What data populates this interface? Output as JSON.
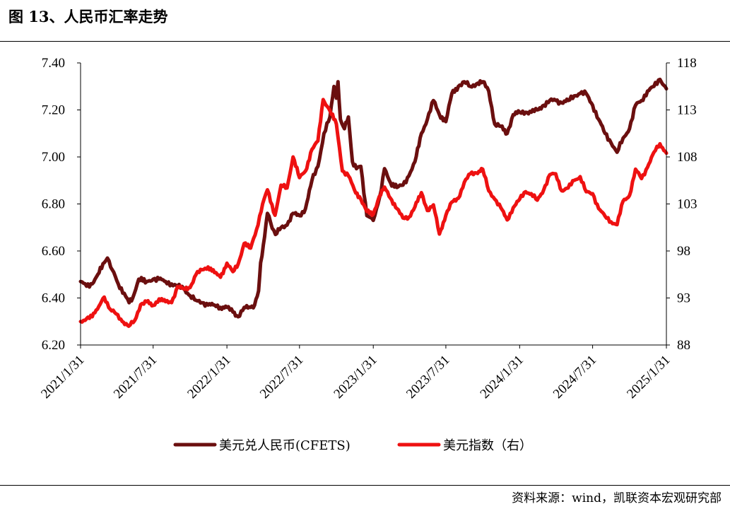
{
  "figure": {
    "title": "图 13、人民币汇率走势",
    "source": "资料来源：wind，凯联资本宏观研究部"
  },
  "chart_data": {
    "type": "line",
    "title": "",
    "x_ticks": [
      "2021/1/31",
      "2021/7/31",
      "2022/1/31",
      "2022/7/31",
      "2023/1/31",
      "2023/7/31",
      "2024/1/31",
      "2024/7/31",
      "2025/1/31"
    ],
    "y_left": {
      "label": "",
      "range": [
        6.2,
        7.4
      ],
      "ticks": [
        "6.20",
        "6.40",
        "6.60",
        "6.80",
        "7.00",
        "7.20",
        "7.40"
      ]
    },
    "y_right": {
      "label": "",
      "range": [
        88,
        118
      ],
      "ticks": [
        "88",
        "93",
        "98",
        "103",
        "108",
        "113",
        "118"
      ]
    },
    "grid": false,
    "legend_position": "bottom-center",
    "series": [
      {
        "name": "美元兑人民币(CFETS)",
        "axis": "left",
        "color": "#6b0f0f",
        "points": [
          [
            "2021/1/31",
            6.47
          ],
          [
            "2021/2/15",
            6.45
          ],
          [
            "2021/3/1",
            6.46
          ],
          [
            "2021/3/15",
            6.5
          ],
          [
            "2021/3/31",
            6.55
          ],
          [
            "2021/4/8",
            6.57
          ],
          [
            "2021/4/20",
            6.52
          ],
          [
            "2021/5/5",
            6.46
          ],
          [
            "2021/5/20",
            6.42
          ],
          [
            "2021/6/1",
            6.38
          ],
          [
            "2021/6/10",
            6.4
          ],
          [
            "2021/6/25",
            6.48
          ],
          [
            "2021/7/15",
            6.47
          ],
          [
            "2021/7/31",
            6.48
          ],
          [
            "2021/8/15",
            6.48
          ],
          [
            "2021/8/31",
            6.47
          ],
          [
            "2021/9/15",
            6.46
          ],
          [
            "2021/9/30",
            6.45
          ],
          [
            "2021/10/15",
            6.44
          ],
          [
            "2021/10/31",
            6.41
          ],
          [
            "2021/11/15",
            6.39
          ],
          [
            "2021/11/30",
            6.38
          ],
          [
            "2021/12/15",
            6.37
          ],
          [
            "2021/12/31",
            6.37
          ],
          [
            "2022/1/15",
            6.36
          ],
          [
            "2022/1/31",
            6.36
          ],
          [
            "2022/2/15",
            6.34
          ],
          [
            "2022/2/28",
            6.32
          ],
          [
            "2022/3/15",
            6.36
          ],
          [
            "2022/3/31",
            6.36
          ],
          [
            "2022/4/10",
            6.37
          ],
          [
            "2022/4/20",
            6.43
          ],
          [
            "2022/4/25",
            6.55
          ],
          [
            "2022/5/5",
            6.66
          ],
          [
            "2022/5/12",
            6.76
          ],
          [
            "2022/5/20",
            6.72
          ],
          [
            "2022/6/1",
            6.67
          ],
          [
            "2022/6/15",
            6.7
          ],
          [
            "2022/6/30",
            6.71
          ],
          [
            "2022/7/15",
            6.76
          ],
          [
            "2022/7/31",
            6.75
          ],
          [
            "2022/8/15",
            6.78
          ],
          [
            "2022/8/31",
            6.9
          ],
          [
            "2022/9/15",
            6.96
          ],
          [
            "2022/9/30",
            7.1
          ],
          [
            "2022/10/15",
            7.17
          ],
          [
            "2022/10/25",
            7.3
          ],
          [
            "2022/10/31",
            7.25
          ],
          [
            "2022/11/4",
            7.32
          ],
          [
            "2022/11/10",
            7.16
          ],
          [
            "2022/11/20",
            7.12
          ],
          [
            "2022/11/30",
            7.17
          ],
          [
            "2022/12/10",
            6.98
          ],
          [
            "2022/12/20",
            6.95
          ],
          [
            "2022/12/31",
            6.96
          ],
          [
            "2023/1/15",
            6.75
          ],
          [
            "2023/1/31",
            6.73
          ],
          [
            "2023/2/8",
            6.78
          ],
          [
            "2023/2/20",
            6.86
          ],
          [
            "2023/2/28",
            6.95
          ],
          [
            "2023/3/15",
            6.89
          ],
          [
            "2023/3/31",
            6.87
          ],
          [
            "2023/4/15",
            6.88
          ],
          [
            "2023/4/30",
            6.92
          ],
          [
            "2023/5/15",
            6.98
          ],
          [
            "2023/5/31",
            7.1
          ],
          [
            "2023/6/15",
            7.16
          ],
          [
            "2023/6/30",
            7.24
          ],
          [
            "2023/7/15",
            7.18
          ],
          [
            "2023/7/31",
            7.15
          ],
          [
            "2023/8/15",
            7.27
          ],
          [
            "2023/8/31",
            7.3
          ],
          [
            "2023/9/15",
            7.32
          ],
          [
            "2023/9/30",
            7.3
          ],
          [
            "2023/10/15",
            7.31
          ],
          [
            "2023/10/31",
            7.32
          ],
          [
            "2023/11/15",
            7.28
          ],
          [
            "2023/11/30",
            7.14
          ],
          [
            "2023/12/15",
            7.13
          ],
          [
            "2023/12/31",
            7.1
          ],
          [
            "2024/1/15",
            7.18
          ],
          [
            "2024/1/31",
            7.19
          ],
          [
            "2024/2/15",
            7.19
          ],
          [
            "2024/2/29",
            7.19
          ],
          [
            "2024/3/15",
            7.2
          ],
          [
            "2024/3/31",
            7.22
          ],
          [
            "2024/4/15",
            7.24
          ],
          [
            "2024/4/30",
            7.24
          ],
          [
            "2024/5/15",
            7.23
          ],
          [
            "2024/5/31",
            7.24
          ],
          [
            "2024/6/15",
            7.26
          ],
          [
            "2024/6/30",
            7.27
          ],
          [
            "2024/7/15",
            7.27
          ],
          [
            "2024/7/31",
            7.22
          ],
          [
            "2024/8/15",
            7.16
          ],
          [
            "2024/8/31",
            7.1
          ],
          [
            "2024/9/15",
            7.06
          ],
          [
            "2024/9/30",
            7.02
          ],
          [
            "2024/10/15",
            7.08
          ],
          [
            "2024/10/31",
            7.12
          ],
          [
            "2024/11/15",
            7.22
          ],
          [
            "2024/11/30",
            7.24
          ],
          [
            "2024/12/15",
            7.28
          ],
          [
            "2024/12/31",
            7.3
          ],
          [
            "2025/1/15",
            7.33
          ],
          [
            "2025/1/31",
            7.29
          ]
        ]
      },
      {
        "name": "美元指数（右）",
        "axis": "right",
        "color": "#ee1111",
        "points": [
          [
            "2021/1/31",
            90.5
          ],
          [
            "2021/2/15",
            90.8
          ],
          [
            "2021/3/1",
            91.0
          ],
          [
            "2021/3/31",
            93.1
          ],
          [
            "2021/4/15",
            91.8
          ],
          [
            "2021/4/30",
            91.3
          ],
          [
            "2021/5/15",
            90.5
          ],
          [
            "2021/5/31",
            90.0
          ],
          [
            "2021/6/15",
            90.6
          ],
          [
            "2021/6/30",
            92.3
          ],
          [
            "2021/7/15",
            92.6
          ],
          [
            "2021/7/31",
            92.2
          ],
          [
            "2021/8/15",
            92.9
          ],
          [
            "2021/8/31",
            92.6
          ],
          [
            "2021/9/15",
            92.5
          ],
          [
            "2021/9/30",
            94.2
          ],
          [
            "2021/10/15",
            94.0
          ],
          [
            "2021/10/31",
            94.1
          ],
          [
            "2021/11/15",
            95.5
          ],
          [
            "2021/11/30",
            96.0
          ],
          [
            "2021/12/15",
            96.3
          ],
          [
            "2021/12/31",
            95.7
          ],
          [
            "2022/1/15",
            95.2
          ],
          [
            "2022/1/31",
            96.7
          ],
          [
            "2022/2/15",
            95.8
          ],
          [
            "2022/2/28",
            96.6
          ],
          [
            "2022/3/15",
            98.8
          ],
          [
            "2022/3/31",
            98.3
          ],
          [
            "2022/4/15",
            100.3
          ],
          [
            "2022/4/30",
            103.0
          ],
          [
            "2022/5/12",
            104.5
          ],
          [
            "2022/5/31",
            101.8
          ],
          [
            "2022/6/15",
            105.0
          ],
          [
            "2022/6/30",
            104.7
          ],
          [
            "2022/7/15",
            108.0
          ],
          [
            "2022/7/31",
            105.8
          ],
          [
            "2022/8/15",
            106.5
          ],
          [
            "2022/8/31",
            108.8
          ],
          [
            "2022/9/15",
            109.7
          ],
          [
            "2022/9/28",
            114.1
          ],
          [
            "2022/10/15",
            112.9
          ],
          [
            "2022/10/31",
            111.5
          ],
          [
            "2022/11/15",
            106.5
          ],
          [
            "2022/11/30",
            106.0
          ],
          [
            "2022/12/15",
            104.5
          ],
          [
            "2022/12/31",
            103.5
          ],
          [
            "2023/1/15",
            102.2
          ],
          [
            "2023/1/31",
            101.9
          ],
          [
            "2023/2/15",
            103.8
          ],
          [
            "2023/2/28",
            104.8
          ],
          [
            "2023/3/15",
            103.6
          ],
          [
            "2023/3/31",
            102.5
          ],
          [
            "2023/4/15",
            101.5
          ],
          [
            "2023/4/30",
            101.6
          ],
          [
            "2023/5/15",
            102.7
          ],
          [
            "2023/5/31",
            104.2
          ],
          [
            "2023/6/15",
            102.3
          ],
          [
            "2023/6/30",
            102.9
          ],
          [
            "2023/7/15",
            99.8
          ],
          [
            "2023/7/31",
            101.8
          ],
          [
            "2023/8/15",
            103.2
          ],
          [
            "2023/8/31",
            103.6
          ],
          [
            "2023/9/15",
            105.3
          ],
          [
            "2023/9/30",
            106.2
          ],
          [
            "2023/10/15",
            106.3
          ],
          [
            "2023/10/31",
            106.7
          ],
          [
            "2023/11/15",
            104.4
          ],
          [
            "2023/11/30",
            103.5
          ],
          [
            "2023/12/15",
            102.6
          ],
          [
            "2023/12/31",
            101.3
          ],
          [
            "2024/1/15",
            102.6
          ],
          [
            "2024/1/31",
            103.5
          ],
          [
            "2024/2/15",
            104.3
          ],
          [
            "2024/2/29",
            104.1
          ],
          [
            "2024/3/15",
            103.4
          ],
          [
            "2024/3/31",
            104.5
          ],
          [
            "2024/4/15",
            106.1
          ],
          [
            "2024/4/30",
            106.2
          ],
          [
            "2024/5/15",
            104.4
          ],
          [
            "2024/5/31",
            104.7
          ],
          [
            "2024/6/15",
            105.5
          ],
          [
            "2024/6/30",
            105.9
          ],
          [
            "2024/7/15",
            104.3
          ],
          [
            "2024/7/31",
            104.1
          ],
          [
            "2024/8/15",
            102.5
          ],
          [
            "2024/8/31",
            101.7
          ],
          [
            "2024/9/15",
            101.1
          ],
          [
            "2024/9/30",
            100.8
          ],
          [
            "2024/10/15",
            103.3
          ],
          [
            "2024/10/31",
            103.9
          ],
          [
            "2024/11/15",
            106.7
          ],
          [
            "2024/11/30",
            105.7
          ],
          [
            "2024/12/15",
            106.9
          ],
          [
            "2024/12/31",
            108.5
          ],
          [
            "2025/1/15",
            109.4
          ],
          [
            "2025/1/31",
            108.4
          ]
        ]
      }
    ]
  }
}
